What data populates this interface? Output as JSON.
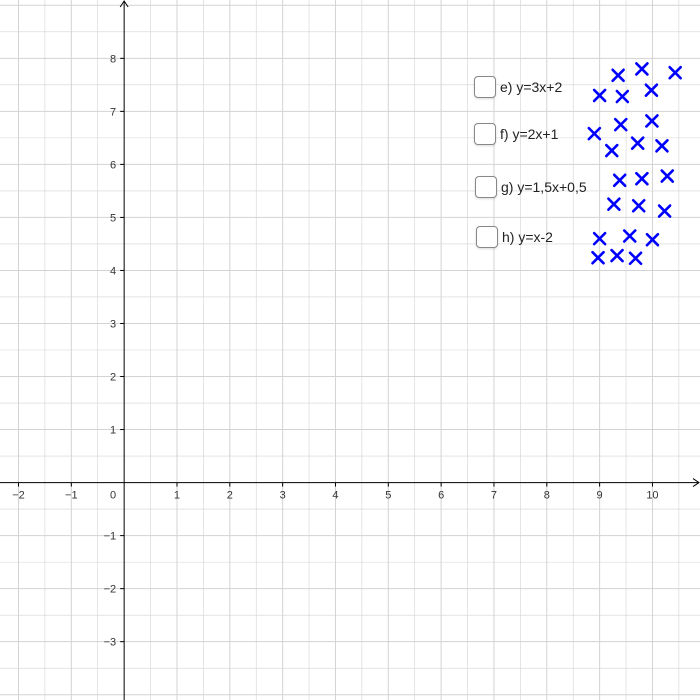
{
  "colors": {
    "grid": "#d3d3d3",
    "axis": "#000000",
    "point": "#0000ff",
    "background": "#ffffff"
  },
  "axes": {
    "x_range": [
      -2.35,
      10.9
    ],
    "y_range": [
      -4.1,
      9.1
    ],
    "x_ticks": [
      {
        "value": -2,
        "label": "−2"
      },
      {
        "value": -1,
        "label": "−1"
      },
      {
        "value": 1,
        "label": "1"
      },
      {
        "value": 2,
        "label": "2"
      },
      {
        "value": 3,
        "label": "3"
      },
      {
        "value": 4,
        "label": "4"
      },
      {
        "value": 5,
        "label": "5"
      },
      {
        "value": 6,
        "label": "6"
      },
      {
        "value": 7,
        "label": "7"
      },
      {
        "value": 8,
        "label": "8"
      },
      {
        "value": 9,
        "label": "9"
      },
      {
        "value": 10,
        "label": "10"
      }
    ],
    "y_ticks": [
      {
        "value": -3,
        "label": "−3"
      },
      {
        "value": -2,
        "label": "−2"
      },
      {
        "value": -1,
        "label": "−1"
      },
      {
        "value": 1,
        "label": "1"
      },
      {
        "value": 2,
        "label": "2"
      },
      {
        "value": 3,
        "label": "3"
      },
      {
        "value": 4,
        "label": "4"
      },
      {
        "value": 5,
        "label": "5"
      },
      {
        "value": 6,
        "label": "6"
      },
      {
        "value": 7,
        "label": "7"
      },
      {
        "value": 8,
        "label": "8"
      }
    ],
    "origin_label": "0",
    "grid": true
  },
  "checkboxes": [
    {
      "id": "e",
      "label": "e) y=3x+2",
      "checked": false
    },
    {
      "id": "f",
      "label": "f) y=2x+1",
      "checked": false
    },
    {
      "id": "g",
      "label": "g) y=1,5x+0,5",
      "checked": false
    },
    {
      "id": "h",
      "label": "h) y=x-2",
      "checked": false
    }
  ],
  "chart_data": {
    "type": "scatter",
    "marker": "x",
    "grid": true,
    "xlim": [
      -2.35,
      10.9
    ],
    "ylim": [
      -4.1,
      9.1
    ],
    "points": [
      {
        "x": 9.35,
        "y": 7.68
      },
      {
        "x": 9.8,
        "y": 7.8
      },
      {
        "x": 10.43,
        "y": 7.73
      },
      {
        "x": 9.0,
        "y": 7.3
      },
      {
        "x": 9.43,
        "y": 7.28
      },
      {
        "x": 9.98,
        "y": 7.4
      },
      {
        "x": 9.4,
        "y": 6.75
      },
      {
        "x": 9.99,
        "y": 6.82
      },
      {
        "x": 8.9,
        "y": 6.58
      },
      {
        "x": 9.72,
        "y": 6.4
      },
      {
        "x": 9.23,
        "y": 6.26
      },
      {
        "x": 10.18,
        "y": 6.35
      },
      {
        "x": 9.38,
        "y": 5.7
      },
      {
        "x": 9.8,
        "y": 5.73
      },
      {
        "x": 10.28,
        "y": 5.78
      },
      {
        "x": 9.27,
        "y": 5.25
      },
      {
        "x": 9.74,
        "y": 5.22
      },
      {
        "x": 10.23,
        "y": 5.12
      },
      {
        "x": 9.0,
        "y": 4.6
      },
      {
        "x": 9.57,
        "y": 4.65
      },
      {
        "x": 10.0,
        "y": 4.58
      },
      {
        "x": 8.97,
        "y": 4.24
      },
      {
        "x": 9.33,
        "y": 4.28
      },
      {
        "x": 9.68,
        "y": 4.23
      }
    ]
  }
}
